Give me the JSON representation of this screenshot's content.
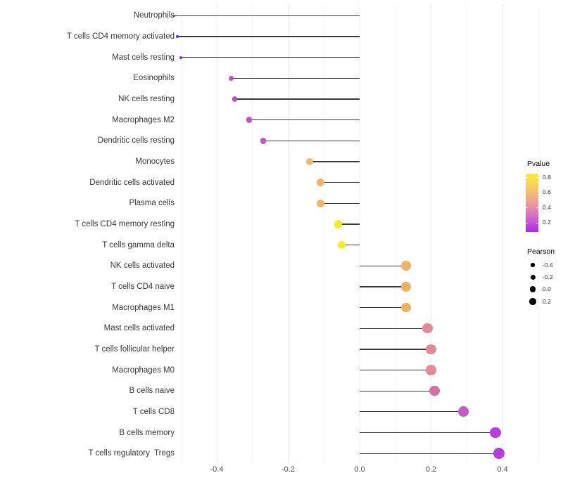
{
  "chart_data": {
    "type": "lollipop",
    "title": "",
    "xlabel": "",
    "ylabel": "",
    "grid": "on",
    "background": "#ffffff",
    "x_ticks": [
      "-0.4",
      "-0.2",
      "0.0",
      "0.2",
      "0.4"
    ],
    "x_tick_values": [
      -0.4,
      -0.2,
      0.0,
      0.2,
      0.4
    ],
    "x_range": [
      -0.55,
      0.52
    ],
    "categories": [
      "Neutrophils",
      "T cells CD4 memory activated",
      "Mast cells resting",
      "Eosinophils",
      "NK cells resting",
      "Macrophages M2",
      "Dendritic cells resting",
      "Monocytes",
      "Dendritic cells activated",
      "Plasma cells",
      "T cells CD4 memory resting",
      "T cells gamma delta",
      "NK cells activated",
      "T cells CD4 naive",
      "Macrophages M1",
      "Mast cells activated",
      "T cells follicular helper",
      "Macrophages M0",
      "B cells naive",
      "T cells CD8",
      "B cells memory",
      "T cells regulatory  Tregs"
    ],
    "series": [
      {
        "name": "Pearson",
        "values": [
          -0.52,
          -0.51,
          -0.5,
          -0.36,
          -0.35,
          -0.31,
          -0.27,
          -0.14,
          -0.11,
          -0.11,
          -0.06,
          -0.05,
          0.13,
          0.13,
          0.13,
          0.19,
          0.2,
          0.2,
          0.21,
          0.29,
          0.38,
          0.39
        ]
      }
    ],
    "point_colors": [
      "#7b2bd1",
      "#7b2bd1",
      "#8130d0",
      "#b94fc9",
      "#ba52c8",
      "#bb55c7",
      "#bd59c5",
      "#f0b96f",
      "#f0b46a",
      "#f0b46a",
      "#f1ee26",
      "#f1ee26",
      "#efb164",
      "#efb164",
      "#efb164",
      "#e28b94",
      "#e28b94",
      "#e28b94",
      "#d3739e",
      "#c45bc5",
      "#b73edc",
      "#b73edc"
    ],
    "stem_color": "#3a3a3a",
    "legends": {
      "pvalue": {
        "title": "Pvalue",
        "tick_labels": [
          "0.8",
          "0.6",
          "0.4",
          "0.2"
        ],
        "tick_values": [
          0.8,
          0.6,
          0.4,
          0.2
        ],
        "bar_value_top": 0.849,
        "bar_value_bottom": 0.077,
        "gradient_top_to_bottom": [
          "#f9ee35",
          "#f6c967",
          "#ec9f97",
          "#d566cc",
          "#a82bee"
        ]
      },
      "pearson": {
        "title": "Pearson",
        "entries": [
          "-0.4",
          "-0.2",
          "0.0",
          "0.2"
        ],
        "entry_values": [
          -0.4,
          -0.2,
          0.0,
          0.2
        ],
        "dot_color": "#000000"
      }
    }
  }
}
